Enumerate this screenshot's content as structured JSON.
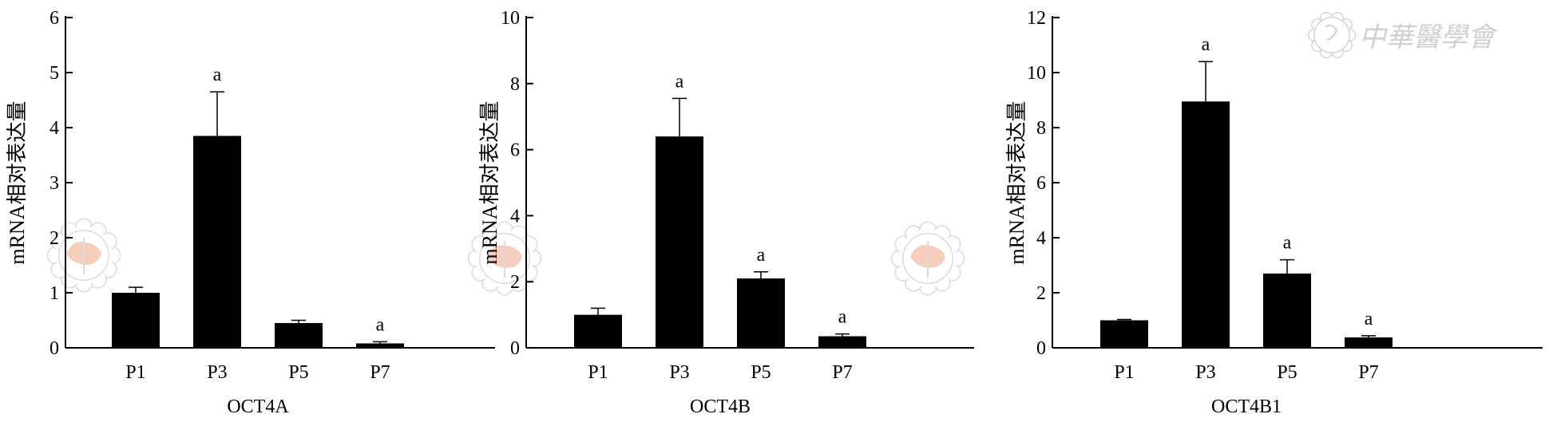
{
  "chart_data": [
    {
      "type": "bar",
      "xlabel": "OCT4A",
      "ylabel": "mRNA相对表达量",
      "categories": [
        "P1",
        "P3",
        "P5",
        "P7"
      ],
      "values": [
        1.0,
        3.85,
        0.45,
        0.08
      ],
      "errors": [
        0.1,
        0.8,
        0.05,
        0.03
      ],
      "annotations": [
        "",
        "a",
        "",
        "a"
      ],
      "ylim": [
        0,
        6
      ],
      "yticks": [
        "0",
        "1",
        "2",
        "3",
        "4",
        "5",
        "6"
      ],
      "ytick_values": [
        0,
        1,
        2,
        3,
        4,
        5,
        6
      ]
    },
    {
      "type": "bar",
      "xlabel": "OCT4B",
      "ylabel": "mRNA相对表达量",
      "categories": [
        "P1",
        "P3",
        "P5",
        "P7"
      ],
      "values": [
        1.0,
        6.4,
        2.1,
        0.35
      ],
      "errors": [
        0.2,
        1.15,
        0.2,
        0.07
      ],
      "annotations": [
        "",
        "a",
        "a",
        "a"
      ],
      "ylim": [
        0,
        10
      ],
      "yticks": [
        "0",
        "2",
        "4",
        "6",
        "8",
        "10"
      ],
      "ytick_values": [
        0,
        2,
        4,
        6,
        8,
        10
      ]
    },
    {
      "type": "bar",
      "xlabel": "OCT4B1",
      "ylabel": "mRNA相对表达量",
      "categories": [
        "P1",
        "P3",
        "P5",
        "P7"
      ],
      "values": [
        1.0,
        8.95,
        2.7,
        0.38
      ],
      "errors": [
        0.03,
        1.45,
        0.5,
        0.06
      ],
      "annotations": [
        "",
        "a",
        "a",
        "a"
      ],
      "ylim": [
        0,
        12
      ],
      "yticks": [
        "0",
        "2",
        "4",
        "6",
        "8",
        "10",
        "12"
      ],
      "ytick_values": [
        0,
        2,
        4,
        6,
        8,
        10,
        12
      ]
    }
  ],
  "watermark": {
    "text": "中華醫學會",
    "icon": "cma-logo-icon",
    "color": "#d0d0d0",
    "map_color": "#f0b090"
  }
}
